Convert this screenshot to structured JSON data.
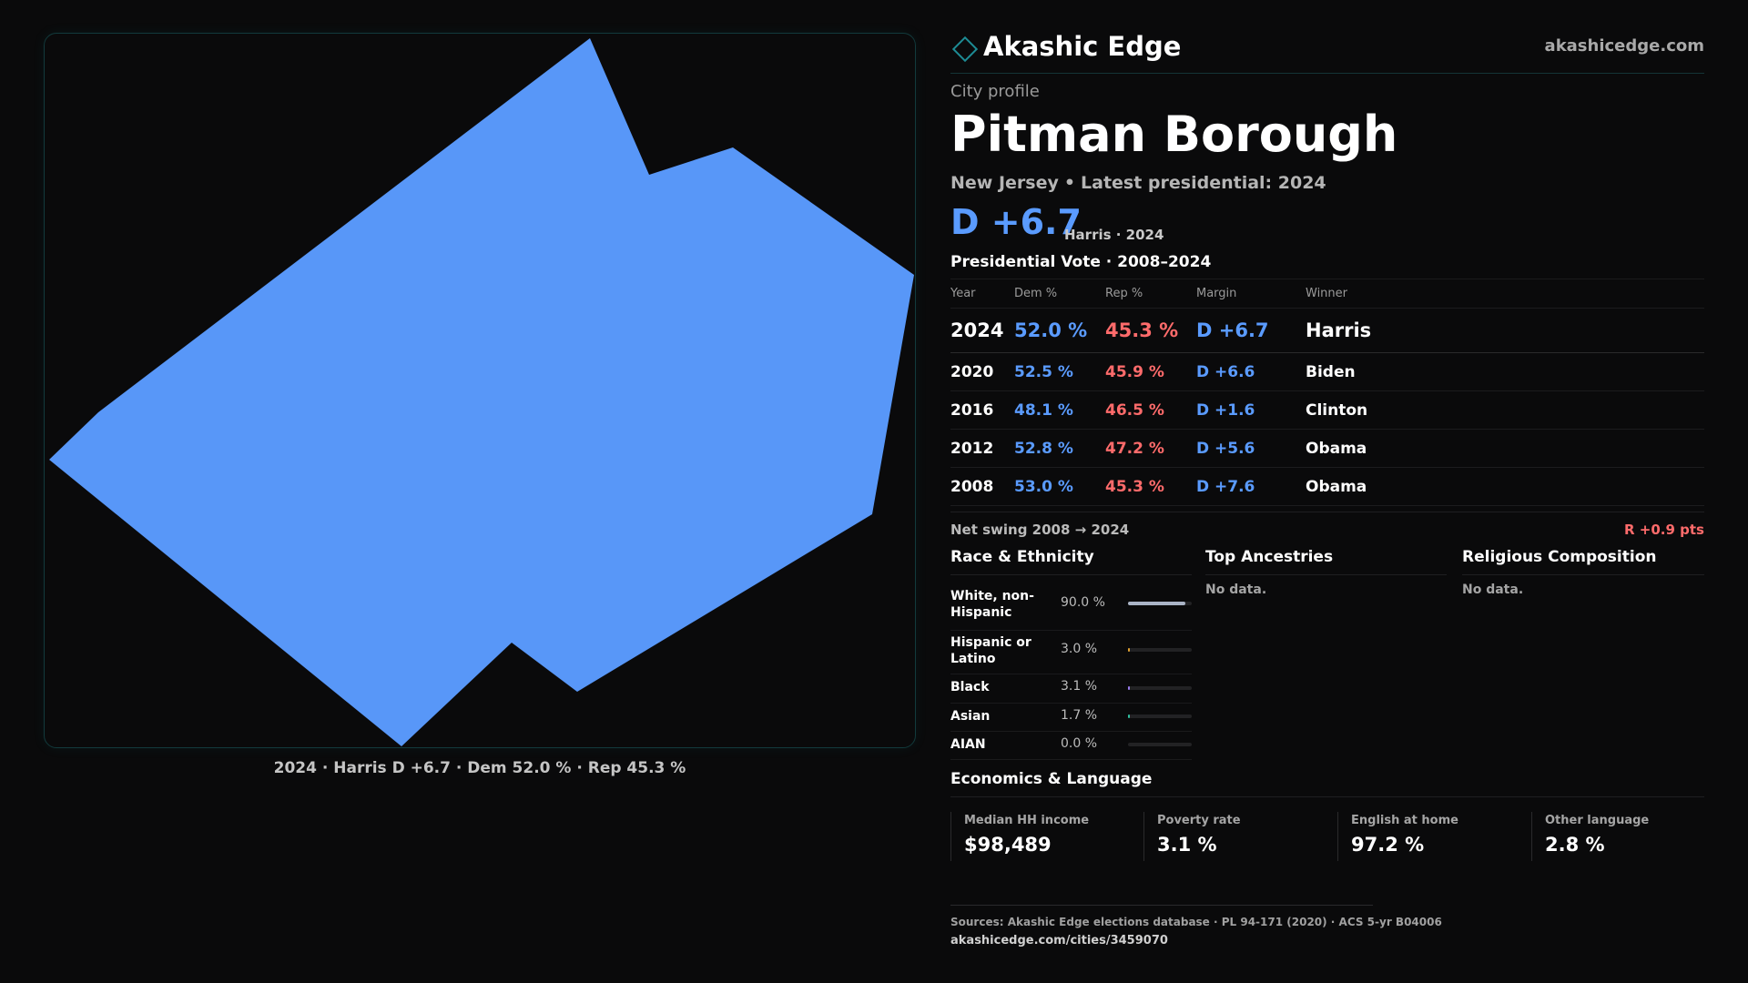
{
  "header": {
    "brand": "Akashic Edge",
    "site": "akashicedge.com",
    "accent": "#1d8c95"
  },
  "profile": {
    "kicker": "City profile",
    "name": "Pitman Borough",
    "state": "New Jersey",
    "latest_label": "Latest presidential: 2024",
    "margin": "D +6.7",
    "margin_note": "Harris · 2024"
  },
  "map": {
    "fill_color": "#5897f8",
    "caption": "2024 · Harris D +6.7 · Dem 52.0 % · Rep 45.3 %"
  },
  "vote_table": {
    "title": "Presidential Vote · 2008–2024",
    "headers": [
      "Year",
      "Dem %",
      "Rep %",
      "Margin",
      "Winner"
    ],
    "rows": [
      {
        "year": "2024",
        "dem": "52.0 %",
        "rep": "45.3 %",
        "margin": "D +6.7",
        "winner": "Harris"
      },
      {
        "year": "2020",
        "dem": "52.5 %",
        "rep": "45.9 %",
        "margin": "D +6.6",
        "winner": "Biden"
      },
      {
        "year": "2016",
        "dem": "48.1 %",
        "rep": "46.5 %",
        "margin": "D +1.6",
        "winner": "Clinton"
      },
      {
        "year": "2012",
        "dem": "52.8 %",
        "rep": "47.2 %",
        "margin": "D +5.6",
        "winner": "Obama"
      },
      {
        "year": "2008",
        "dem": "53.0 %",
        "rep": "45.3 %",
        "margin": "D +7.6",
        "winner": "Obama"
      }
    ],
    "dem_color": "#5a9bff",
    "rep_color": "#ff6b6b"
  },
  "swing": {
    "label": "Net swing 2008 → 2024",
    "value": "R +0.9 pts"
  },
  "race": {
    "title": "Race & Ethnicity",
    "items": [
      {
        "label": "White, non-Hispanic",
        "pct": "90.0 %",
        "value": 90.0,
        "color": "#aab4c6"
      },
      {
        "label": "Hispanic or Latino",
        "pct": "3.0 %",
        "value": 3.0,
        "color": "#e0a030"
      },
      {
        "label": "Black",
        "pct": "3.1 %",
        "value": 3.1,
        "color": "#9a7cf0"
      },
      {
        "label": "Asian",
        "pct": "1.7 %",
        "value": 1.7,
        "color": "#30c0a0"
      },
      {
        "label": "AIAN",
        "pct": "0.0 %",
        "value": 0.0,
        "color": "#888888"
      }
    ]
  },
  "ancestries": {
    "title": "Top Ancestries",
    "empty": "No data."
  },
  "religion": {
    "title": "Religious Composition",
    "empty": "No data."
  },
  "economics": {
    "title": "Economics & Language",
    "items": [
      {
        "label": "Median HH income",
        "value": "$98,489"
      },
      {
        "label": "Poverty rate",
        "value": "3.1 %"
      },
      {
        "label": "English at home",
        "value": "97.2 %"
      },
      {
        "label": "Other language",
        "value": "2.8 %"
      }
    ]
  },
  "footer": {
    "sources": "Sources: Akashic Edge elections database · PL 94-171 (2020) · ACS 5-yr B04006",
    "url": "akashicedge.com/cities/3459070"
  }
}
